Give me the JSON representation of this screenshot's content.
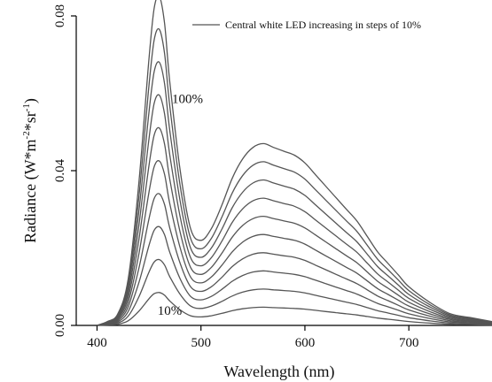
{
  "chart_data": {
    "type": "line",
    "xlabel": "Wavelength (nm)",
    "ylabel": "Radiance (W*m-2*sr-1)",
    "ylabel_parts": {
      "base": "Radiance (W*m",
      "sup1": "-2",
      "mid": "*sr",
      "sup2": "-1",
      "end": ")"
    },
    "xlim": [
      380,
      780
    ],
    "ylim": [
      0,
      0.08
    ],
    "xticks": [
      400,
      500,
      600,
      700
    ],
    "yticks": [
      0.0,
      0.04,
      0.08
    ],
    "ytick_labels": [
      "0.00",
      "0.04",
      "0.08"
    ],
    "legend": {
      "label": "Central white LED increasing in steps of 10%",
      "position": "top-right"
    },
    "annotations": [
      {
        "text": "100%",
        "x": 487,
        "y": 0.0575
      },
      {
        "text": "10%",
        "x": 470,
        "y": 0.0028
      }
    ],
    "grid": false,
    "x": [
      400,
      410,
      420,
      430,
      440,
      450,
      455,
      460,
      465,
      470,
      480,
      490,
      500,
      510,
      520,
      530,
      540,
      550,
      560,
      570,
      580,
      590,
      600,
      610,
      620,
      630,
      640,
      650,
      660,
      670,
      680,
      690,
      700,
      720,
      740,
      760,
      780
    ],
    "series": [
      {
        "values": [
          0.0,
          0.0001,
          0.0003,
          0.0012,
          0.0036,
          0.0069,
          0.0082,
          0.0085,
          0.0078,
          0.0063,
          0.004,
          0.0025,
          0.0022,
          0.0025,
          0.0031,
          0.0038,
          0.0043,
          0.0046,
          0.0047,
          0.0046,
          0.0045,
          0.0044,
          0.0042,
          0.0039,
          0.0036,
          0.0033,
          0.003,
          0.0027,
          0.0023,
          0.0019,
          0.0016,
          0.0013,
          0.001,
          0.0006,
          0.0003,
          0.0002,
          0.0001
        ]
      },
      {
        "values": [
          0.0,
          0.0002,
          0.0006,
          0.0024,
          0.0072,
          0.0138,
          0.0164,
          0.017,
          0.0156,
          0.0126,
          0.008,
          0.005,
          0.0044,
          0.005,
          0.0062,
          0.0076,
          0.0086,
          0.0092,
          0.0094,
          0.0092,
          0.009,
          0.0088,
          0.0084,
          0.0078,
          0.0072,
          0.0066,
          0.006,
          0.0054,
          0.0046,
          0.0038,
          0.0032,
          0.0026,
          0.002,
          0.0012,
          0.0006,
          0.0004,
          0.0002
        ]
      },
      {
        "values": [
          0.0,
          0.0003,
          0.0009,
          0.0036,
          0.0108,
          0.0207,
          0.0246,
          0.0255,
          0.0234,
          0.0189,
          0.012,
          0.0075,
          0.0066,
          0.0075,
          0.0093,
          0.0114,
          0.0129,
          0.0138,
          0.0141,
          0.0138,
          0.0135,
          0.0132,
          0.0126,
          0.0117,
          0.0108,
          0.0099,
          0.009,
          0.0081,
          0.0069,
          0.0057,
          0.0048,
          0.0039,
          0.003,
          0.0018,
          0.0009,
          0.0006,
          0.0003
        ]
      },
      {
        "values": [
          0.0,
          0.0004,
          0.0012,
          0.0048,
          0.0144,
          0.0276,
          0.0328,
          0.034,
          0.0312,
          0.0252,
          0.016,
          0.01,
          0.0088,
          0.01,
          0.0124,
          0.0152,
          0.0172,
          0.0184,
          0.0188,
          0.0184,
          0.018,
          0.0176,
          0.0168,
          0.0156,
          0.0144,
          0.0132,
          0.012,
          0.0108,
          0.0092,
          0.0076,
          0.0064,
          0.0052,
          0.004,
          0.0024,
          0.0012,
          0.0008,
          0.0004
        ]
      },
      {
        "values": [
          0.0,
          0.0005,
          0.0015,
          0.006,
          0.018,
          0.0345,
          0.041,
          0.0425,
          0.039,
          0.0315,
          0.02,
          0.0125,
          0.011,
          0.0125,
          0.0155,
          0.019,
          0.0215,
          0.023,
          0.0235,
          0.023,
          0.0225,
          0.022,
          0.021,
          0.0195,
          0.018,
          0.0165,
          0.015,
          0.0135,
          0.0115,
          0.0095,
          0.008,
          0.0065,
          0.005,
          0.003,
          0.0015,
          0.001,
          0.0005
        ]
      },
      {
        "values": [
          0.0,
          0.0006,
          0.0018,
          0.0072,
          0.0216,
          0.0414,
          0.0492,
          0.051,
          0.0468,
          0.0378,
          0.024,
          0.015,
          0.0132,
          0.015,
          0.0186,
          0.0228,
          0.0258,
          0.0276,
          0.0282,
          0.0276,
          0.027,
          0.0264,
          0.0252,
          0.0234,
          0.0216,
          0.0198,
          0.018,
          0.0162,
          0.0138,
          0.0114,
          0.0096,
          0.0078,
          0.006,
          0.0036,
          0.0018,
          0.0012,
          0.0006
        ]
      },
      {
        "values": [
          0.0,
          0.0007,
          0.0021,
          0.0084,
          0.0252,
          0.0483,
          0.0574,
          0.0595,
          0.0546,
          0.0441,
          0.028,
          0.0175,
          0.0154,
          0.0175,
          0.0217,
          0.0266,
          0.0301,
          0.0322,
          0.0329,
          0.0322,
          0.0315,
          0.0308,
          0.0294,
          0.0273,
          0.0252,
          0.0231,
          0.021,
          0.0189,
          0.0161,
          0.0133,
          0.0112,
          0.0091,
          0.007,
          0.0042,
          0.0021,
          0.0014,
          0.0007
        ]
      },
      {
        "values": [
          0.0,
          0.0008,
          0.0024,
          0.0096,
          0.0288,
          0.0552,
          0.0656,
          0.068,
          0.0624,
          0.0504,
          0.032,
          0.02,
          0.0176,
          0.02,
          0.0248,
          0.0304,
          0.0344,
          0.0368,
          0.0376,
          0.0368,
          0.036,
          0.0352,
          0.0336,
          0.0312,
          0.0288,
          0.0264,
          0.024,
          0.0216,
          0.0184,
          0.0152,
          0.0128,
          0.0104,
          0.008,
          0.0048,
          0.0024,
          0.0016,
          0.0008
        ]
      },
      {
        "values": [
          0.0,
          0.0009,
          0.0027,
          0.0108,
          0.0324,
          0.0621,
          0.0738,
          0.0765,
          0.0702,
          0.0567,
          0.036,
          0.0225,
          0.0198,
          0.0225,
          0.0279,
          0.0342,
          0.0387,
          0.0414,
          0.0423,
          0.0414,
          0.0405,
          0.0396,
          0.0378,
          0.0351,
          0.0324,
          0.0297,
          0.027,
          0.0243,
          0.0207,
          0.0171,
          0.0144,
          0.0117,
          0.009,
          0.0054,
          0.0027,
          0.0018,
          0.0009
        ]
      },
      {
        "values": [
          0.0,
          0.001,
          0.003,
          0.012,
          0.036,
          0.069,
          0.082,
          0.085,
          0.078,
          0.063,
          0.04,
          0.025,
          0.022,
          0.025,
          0.031,
          0.038,
          0.043,
          0.046,
          0.047,
          0.046,
          0.045,
          0.044,
          0.042,
          0.039,
          0.036,
          0.033,
          0.03,
          0.027,
          0.023,
          0.019,
          0.016,
          0.013,
          0.01,
          0.006,
          0.003,
          0.002,
          0.001
        ]
      }
    ],
    "colors": {
      "line": "#555555",
      "axis": "#000000"
    }
  }
}
